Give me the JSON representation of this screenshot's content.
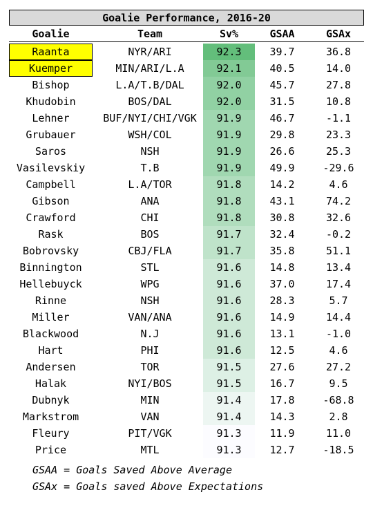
{
  "title": "Goalie Performance, 2016-20",
  "headers": {
    "goalie": "Goalie",
    "team": "Team",
    "sv": "Sv%",
    "gsaa": "GSAA",
    "gsax": "GSAx"
  },
  "rows": [
    {
      "goalie": "Raanta",
      "team": "NYR/ARI",
      "sv": "92.3",
      "gsaa": "39.7",
      "gsax": "36.8",
      "highlight": true
    },
    {
      "goalie": "Kuemper",
      "team": "MIN/ARI/L.A",
      "sv": "92.1",
      "gsaa": "40.5",
      "gsax": "14.0",
      "highlight": true
    },
    {
      "goalie": "Bishop",
      "team": "L.A/T.B/DAL",
      "sv": "92.0",
      "gsaa": "45.7",
      "gsax": "27.8"
    },
    {
      "goalie": "Khudobin",
      "team": "BOS/DAL",
      "sv": "92.0",
      "gsaa": "31.5",
      "gsax": "10.8"
    },
    {
      "goalie": "Lehner",
      "team": "BUF/NYI/CHI/VGK",
      "sv": "91.9",
      "gsaa": "46.7",
      "gsax": "-1.1"
    },
    {
      "goalie": "Grubauer",
      "team": "WSH/COL",
      "sv": "91.9",
      "gsaa": "29.8",
      "gsax": "23.3"
    },
    {
      "goalie": "Saros",
      "team": "NSH",
      "sv": "91.9",
      "gsaa": "26.6",
      "gsax": "25.3"
    },
    {
      "goalie": "Vasilevskiy",
      "team": "T.B",
      "sv": "91.9",
      "gsaa": "49.9",
      "gsax": "-29.6"
    },
    {
      "goalie": "Campbell",
      "team": "L.A/TOR",
      "sv": "91.8",
      "gsaa": "14.2",
      "gsax": "4.6"
    },
    {
      "goalie": "Gibson",
      "team": "ANA",
      "sv": "91.8",
      "gsaa": "43.1",
      "gsax": "74.2"
    },
    {
      "goalie": "Crawford",
      "team": "CHI",
      "sv": "91.8",
      "gsaa": "30.8",
      "gsax": "32.6"
    },
    {
      "goalie": "Rask",
      "team": "BOS",
      "sv": "91.7",
      "gsaa": "32.4",
      "gsax": "-0.2"
    },
    {
      "goalie": "Bobrovsky",
      "team": "CBJ/FLA",
      "sv": "91.7",
      "gsaa": "35.8",
      "gsax": "51.1"
    },
    {
      "goalie": "Binnington",
      "team": "STL",
      "sv": "91.6",
      "gsaa": "14.8",
      "gsax": "13.4"
    },
    {
      "goalie": "Hellebuyck",
      "team": "WPG",
      "sv": "91.6",
      "gsaa": "37.0",
      "gsax": "17.4"
    },
    {
      "goalie": "Rinne",
      "team": "NSH",
      "sv": "91.6",
      "gsaa": "28.3",
      "gsax": "5.7"
    },
    {
      "goalie": "Miller",
      "team": "VAN/ANA",
      "sv": "91.6",
      "gsaa": "14.9",
      "gsax": "14.4"
    },
    {
      "goalie": "Blackwood",
      "team": "N.J",
      "sv": "91.6",
      "gsaa": "13.1",
      "gsax": "-1.0"
    },
    {
      "goalie": "Hart",
      "team": "PHI",
      "sv": "91.6",
      "gsaa": "12.5",
      "gsax": "4.6"
    },
    {
      "goalie": "Andersen",
      "team": "TOR",
      "sv": "91.5",
      "gsaa": "27.6",
      "gsax": "27.2"
    },
    {
      "goalie": "Halak",
      "team": "NYI/BOS",
      "sv": "91.5",
      "gsaa": "16.7",
      "gsax": "9.5"
    },
    {
      "goalie": "Dubnyk",
      "team": "MIN",
      "sv": "91.4",
      "gsaa": "17.8",
      "gsax": "-68.8"
    },
    {
      "goalie": "Markstrom",
      "team": "VAN",
      "sv": "91.4",
      "gsaa": "14.3",
      "gsax": "2.8"
    },
    {
      "goalie": "Fleury",
      "team": "PIT/VGK",
      "sv": "91.3",
      "gsaa": "11.9",
      "gsax": "11.0"
    },
    {
      "goalie": "Price",
      "team": "MTL",
      "sv": "91.3",
      "gsaa": "12.7",
      "gsax": "-18.5"
    }
  ],
  "notes": [
    "GSAA = Goals Saved Above Average",
    "GSAx = Goals saved Above Expectations"
  ],
  "colors": {
    "heat_high": "#63be7b",
    "heat_low": "#fcfcff",
    "highlight": "#ffff00",
    "title_bg": "#d9d9d9"
  }
}
